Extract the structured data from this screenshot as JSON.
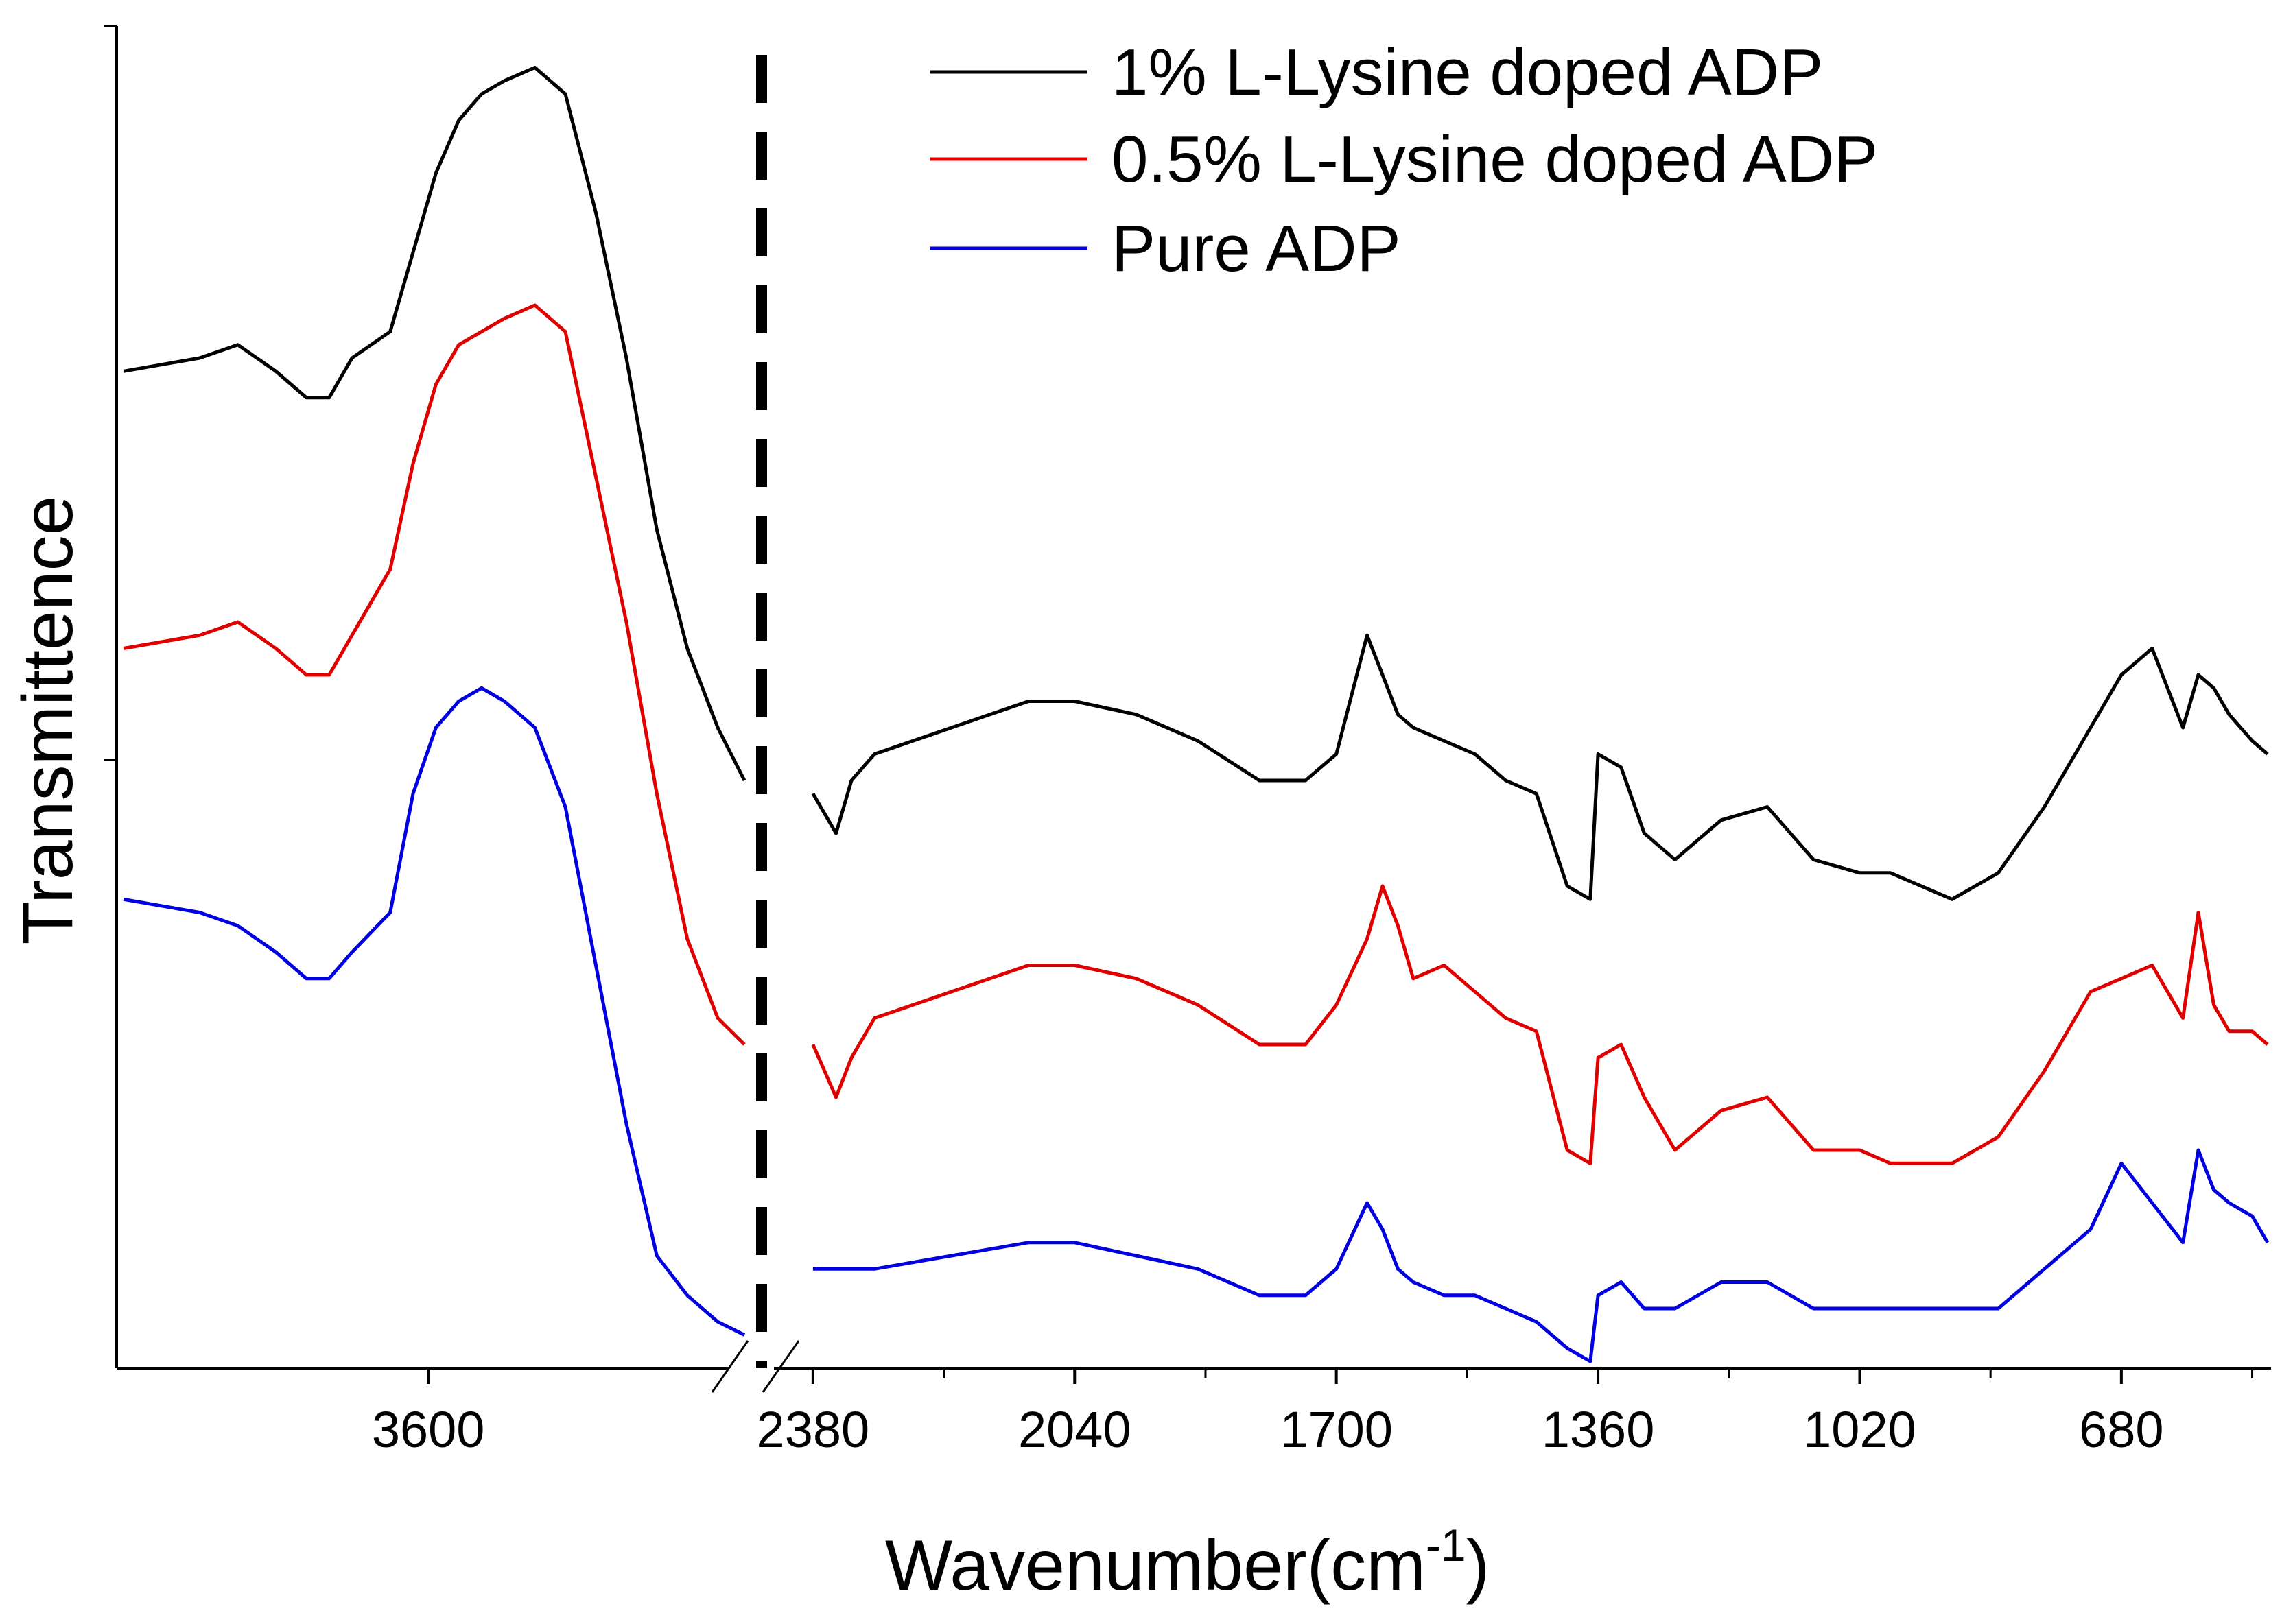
{
  "chart_data": {
    "type": "line",
    "title": "",
    "xlabel": "Wavenumber(cm",
    "xlabel_sup": "-1",
    "xlabel_close": ")",
    "ylabel": "Transmittence",
    "x_reversed": true,
    "x_break": {
      "left_segment": [
        4000,
        3185
      ],
      "right_segment": [
        2420,
        490
      ]
    },
    "x_ticks_labeled": [
      3600,
      2380,
      2040,
      1700,
      1360,
      1020,
      680
    ],
    "x_tick_labels": [
      "3600",
      "2380",
      "2040",
      "1700",
      "1360",
      "1020",
      "680"
    ],
    "break_marker": "break-line",
    "y_range": [
      0,
      100
    ],
    "legend": {
      "position": "top-center",
      "entries": [
        "1% L-Lysine doped ADP",
        "0.5% L-Lysine doped ADP",
        "Pure ADP"
      ]
    },
    "series": [
      {
        "name": "1% L-Lysine doped ADP",
        "color": "#000000",
        "x": [
          4000,
          3900,
          3850,
          3800,
          3760,
          3730,
          3700,
          3650,
          3620,
          3590,
          3560,
          3530,
          3500,
          3460,
          3420,
          3380,
          3340,
          3300,
          3260,
          3220,
          3185,
          2380,
          2350,
          2330,
          2300,
          2200,
          2100,
          2040,
          1960,
          1880,
          1800,
          1740,
          1700,
          1660,
          1640,
          1620,
          1600,
          1560,
          1520,
          1480,
          1440,
          1400,
          1370,
          1360,
          1330,
          1300,
          1260,
          1200,
          1140,
          1080,
          1020,
          980,
          900,
          840,
          780,
          720,
          680,
          640,
          600,
          580,
          560,
          540,
          510,
          490
        ],
        "y": [
          75,
          76,
          77,
          75,
          73,
          73,
          76,
          78,
          84,
          90,
          94,
          96,
          97,
          98,
          96,
          87,
          76,
          63,
          54,
          48,
          44,
          43,
          40,
          44,
          46,
          48,
          50,
          50,
          49,
          47,
          44,
          44,
          46,
          55,
          52,
          49,
          48,
          47,
          46,
          44,
          43,
          36,
          35,
          46,
          45,
          40,
          38,
          41,
          42,
          38,
          37,
          37,
          35,
          37,
          42,
          48,
          52,
          54,
          48,
          52,
          51,
          49,
          47,
          46
        ]
      },
      {
        "name": "0.5% L-Lysine doped ADP",
        "color": "#e00000",
        "x": [
          4000,
          3900,
          3850,
          3800,
          3760,
          3730,
          3700,
          3650,
          3620,
          3590,
          3560,
          3530,
          3500,
          3460,
          3420,
          3380,
          3340,
          3300,
          3260,
          3220,
          3185,
          2380,
          2350,
          2330,
          2300,
          2200,
          2100,
          2040,
          1960,
          1880,
          1800,
          1740,
          1700,
          1660,
          1640,
          1620,
          1600,
          1560,
          1520,
          1480,
          1440,
          1400,
          1370,
          1360,
          1330,
          1300,
          1260,
          1200,
          1140,
          1080,
          1020,
          980,
          900,
          840,
          780,
          720,
          680,
          640,
          600,
          580,
          560,
          540,
          510,
          490
        ],
        "y": [
          54,
          55,
          56,
          54,
          52,
          52,
          55,
          60,
          68,
          74,
          77,
          78,
          79,
          80,
          78,
          67,
          56,
          43,
          32,
          26,
          24,
          24,
          20,
          23,
          26,
          28,
          30,
          30,
          29,
          27,
          24,
          24,
          27,
          32,
          36,
          33,
          29,
          30,
          28,
          26,
          25,
          16,
          15,
          23,
          24,
          20,
          16,
          19,
          20,
          16,
          16,
          15,
          15,
          17,
          22,
          28,
          29,
          30,
          26,
          34,
          27,
          25,
          25,
          24
        ]
      },
      {
        "name": "Pure ADP",
        "color": "#0000e0",
        "x": [
          4000,
          3900,
          3850,
          3800,
          3760,
          3730,
          3700,
          3650,
          3620,
          3590,
          3560,
          3530,
          3500,
          3460,
          3420,
          3380,
          3340,
          3300,
          3260,
          3220,
          3185,
          2380,
          2350,
          2330,
          2300,
          2200,
          2100,
          2040,
          1960,
          1880,
          1800,
          1740,
          1700,
          1660,
          1640,
          1620,
          1600,
          1560,
          1520,
          1480,
          1440,
          1400,
          1370,
          1360,
          1330,
          1300,
          1260,
          1200,
          1140,
          1080,
          1020,
          980,
          900,
          840,
          780,
          720,
          680,
          640,
          600,
          580,
          560,
          540,
          510,
          490
        ],
        "y": [
          35,
          34,
          33,
          31,
          29,
          29,
          31,
          34,
          43,
          48,
          50,
          51,
          50,
          48,
          42,
          30,
          18,
          8,
          5,
          3,
          2,
          7,
          7,
          7,
          7,
          8,
          9,
          9,
          8,
          7,
          5,
          5,
          7,
          12,
          10,
          7,
          6,
          5,
          5,
          4,
          3,
          1,
          0,
          5,
          6,
          4,
          4,
          6,
          6,
          4,
          4,
          4,
          4,
          4,
          7,
          10,
          15,
          12,
          9,
          16,
          13,
          12,
          11,
          9
        ]
      }
    ]
  }
}
